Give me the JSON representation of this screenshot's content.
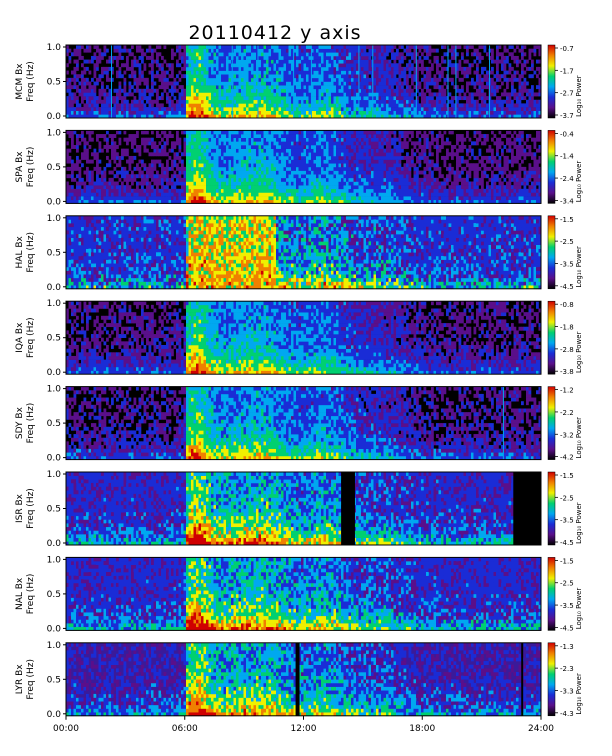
{
  "chart_data": {
    "type": "heatmap",
    "title": "20110412 y axis",
    "x_ticks": [
      "00:00",
      "06:00",
      "12:00",
      "18:00",
      "24:00"
    ],
    "x_range_hours": [
      0,
      24
    ],
    "y_range_hz": [
      0,
      1
    ],
    "y_ticks": [
      "0.0",
      "0.5",
      "1.0"
    ],
    "colorbar_label": "Log₁₀ Power",
    "colormap": [
      "#000000",
      "#5a0f8a",
      "#1a2cd6",
      "#00a8f0",
      "#00d070",
      "#f0f000",
      "#f08000",
      "#d00000"
    ],
    "side_note": "",
    "panels": [
      {
        "station": "MCM Bx",
        "ylabel_line1": "MCM Bx",
        "ylabel_line2": "Freq (Hz)",
        "colorbar_ticks": [
          "-0.7",
          "-1.7",
          "-2.7",
          "-3.7"
        ],
        "background": "#000000",
        "base_level": 0.35,
        "noise_level": 0.25,
        "lines_hours": [
          2.3,
          8.4,
          9.7,
          11.5,
          12.4,
          14.8,
          15.5,
          17.7,
          19.3,
          19.7,
          21.4
        ],
        "dark_gaps_hours": [],
        "bright_spans_hours": []
      },
      {
        "station": "SPA Bx",
        "ylabel_line1": "SPA Bx",
        "ylabel_line2": "Freq (Hz)",
        "colorbar_ticks": [
          "-0.4",
          "-1.4",
          "-2.4",
          "-3.4"
        ],
        "background": "#000000",
        "base_level": 0.35,
        "noise_level": 0.2,
        "lines_hours": [],
        "dark_gaps_hours": [],
        "bright_spans_hours": []
      },
      {
        "station": "HAL Bx",
        "ylabel_line1": "HAL Bx",
        "ylabel_line2": "Freq (Hz)",
        "colorbar_ticks": [
          "-1.5",
          "-2.5",
          "-3.5",
          "-4.5"
        ],
        "background": "#1a2cd6",
        "base_level": 0.5,
        "noise_level": 0.45,
        "lines_hours": [],
        "dark_gaps_hours": [],
        "bright_spans_hours": [
          [
            6.2,
            10.6
          ]
        ]
      },
      {
        "station": "IQA Bx",
        "ylabel_line1": "IQA Bx",
        "ylabel_line2": "Freq (Hz)",
        "colorbar_ticks": [
          "-0.8",
          "-1.8",
          "-2.8",
          "-3.8"
        ],
        "background": "#000000",
        "base_level": 0.35,
        "noise_level": 0.22,
        "lines_hours": [],
        "dark_gaps_hours": [],
        "bright_spans_hours": []
      },
      {
        "station": "SDY Bx",
        "ylabel_line1": "SDY Bx",
        "ylabel_line2": "Freq (Hz)",
        "colorbar_ticks": [
          "-1.2",
          "-2.2",
          "-3.2",
          "-4.2"
        ],
        "background": "#000000",
        "base_level": 0.35,
        "noise_level": 0.25,
        "lines_hours": [
          22.1
        ],
        "dark_gaps_hours": [],
        "bright_spans_hours": []
      },
      {
        "station": "ISR Bx",
        "ylabel_line1": "ISR Bx",
        "ylabel_line2": "Freq (Hz)",
        "colorbar_ticks": [
          "-1.5",
          "-2.5",
          "-3.5",
          "-4.5"
        ],
        "background": "#1a2cd6",
        "base_level": 0.5,
        "noise_level": 0.35,
        "lines_hours": [],
        "dark_gaps_hours": [
          [
            13.9,
            14.6
          ],
          [
            22.6,
            24.0
          ]
        ],
        "bright_spans_hours": []
      },
      {
        "station": "NAL Bx",
        "ylabel_line1": "NAL Bx",
        "ylabel_line2": "Freq (Hz)",
        "colorbar_ticks": [
          "-1.5",
          "-2.5",
          "-3.5",
          "-4.5"
        ],
        "background": "#1a2cd6",
        "base_level": 0.5,
        "noise_level": 0.35,
        "lines_hours": [],
        "dark_gaps_hours": [],
        "bright_spans_hours": []
      },
      {
        "station": "LYR Bx",
        "ylabel_line1": "LYR Bx",
        "ylabel_line2": "Freq (Hz)",
        "colorbar_ticks": [
          "-1.3",
          "-2.3",
          "-3.3",
          "-4.3"
        ],
        "background": "#3a1a9a",
        "base_level": 0.45,
        "noise_level": 0.35,
        "lines_hours": [],
        "dark_gaps_hours": [
          [
            11.6,
            11.8
          ],
          [
            23.0,
            23.1
          ]
        ],
        "bright_spans_hours": []
      }
    ]
  }
}
